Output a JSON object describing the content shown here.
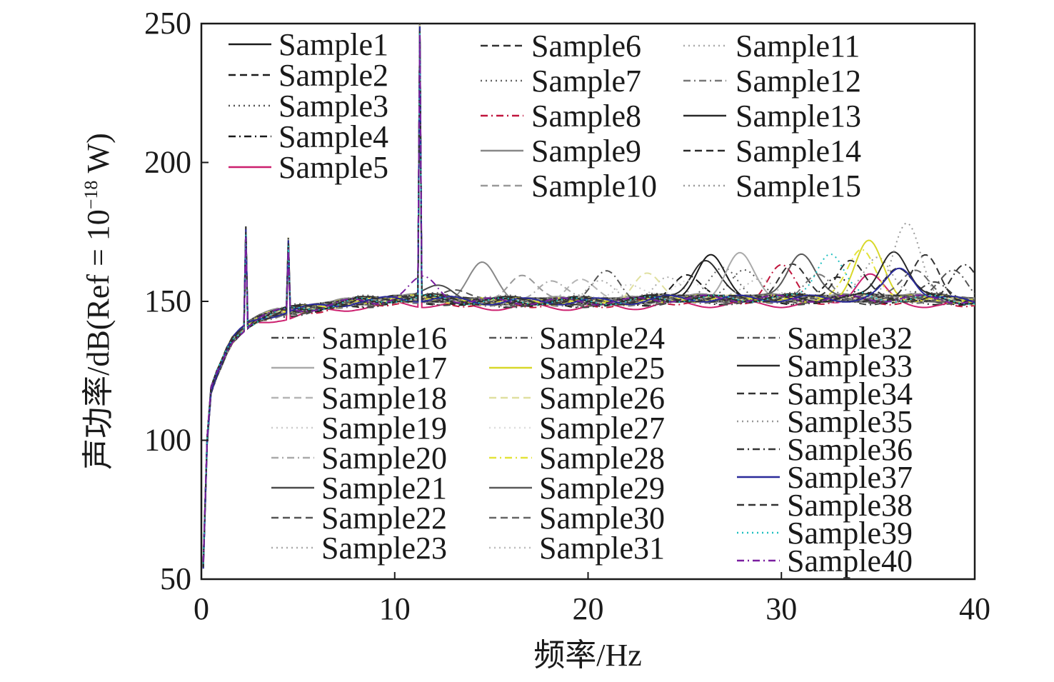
{
  "chart_data": {
    "type": "line",
    "xlabel": "频率/Hz",
    "ylabel": "声功率/dB(Ref = 10",
    "ylabel_exp": "−18",
    "ylabel_unit": " W)",
    "xlim": [
      0,
      40
    ],
    "ylim": [
      50,
      250
    ],
    "xticks": [
      0,
      10,
      20,
      30,
      40
    ],
    "yticks": [
      50,
      100,
      150,
      200,
      250
    ],
    "xtick_labels": [
      "0",
      "10",
      "20",
      "30",
      "40"
    ],
    "ytick_labels": [
      "50",
      "100",
      "150",
      "200",
      "250"
    ],
    "grid": false,
    "legend_placement": "inside, upper half and lower middle",
    "common_shape": {
      "x": [
        0.1,
        0.3,
        0.5,
        0.8,
        1.0,
        1.3,
        1.6,
        2.0,
        2.5,
        3.0,
        3.5,
        4.0,
        5.0,
        6.0,
        7.0,
        8.0,
        9.0,
        10.0,
        11.0,
        12.0,
        14.0,
        16.0,
        18.0,
        20.0,
        22.0,
        24.0,
        26.0,
        28.0,
        30.0,
        32.0,
        34.0,
        36.0,
        38.0,
        40.0
      ],
      "y": [
        55,
        100,
        118,
        124,
        127,
        132,
        136,
        139,
        142,
        144,
        145,
        146,
        147,
        148,
        149,
        150,
        150,
        151,
        151,
        151,
        150,
        150,
        150,
        150,
        150,
        151,
        151,
        151,
        151,
        151,
        151,
        151,
        151,
        150
      ]
    },
    "spikes": [
      {
        "x": 2.3,
        "y": 177
      },
      {
        "x": 4.5,
        "y": 173
      },
      {
        "x": 11.3,
        "y": 250
      }
    ],
    "series": [
      {
        "name": "Sample1",
        "color": "#1a1a1a",
        "dash": "solid",
        "peak_x": 26.3,
        "peak_y": 166,
        "offset": 0.5
      },
      {
        "name": "Sample2",
        "color": "#1a1a1a",
        "dash": "dashed",
        "peak_x": 25.0,
        "peak_y": 160,
        "offset": -0.5
      },
      {
        "name": "Sample3",
        "color": "#555555",
        "dash": "dotted",
        "peak_x": 28.0,
        "peak_y": 162,
        "offset": 0
      },
      {
        "name": "Sample4",
        "color": "#1a1a1a",
        "dash": "dashdot",
        "peak_x": 33.0,
        "peak_y": 158,
        "offset": -1
      },
      {
        "name": "Sample5",
        "color": "#cc1f6e",
        "dash": "solid",
        "peak_x": 34.5,
        "peak_y": 160,
        "offset": -2
      },
      {
        "name": "Sample6",
        "color": "#333333",
        "dash": "dashed",
        "peak_x": 30.5,
        "peak_y": 163,
        "offset": 0
      },
      {
        "name": "Sample7",
        "color": "#666666",
        "dash": "dotted",
        "peak_x": 27.0,
        "peak_y": 161,
        "offset": 1
      },
      {
        "name": "Sample8",
        "color": "#c0143c",
        "dash": "dashdot",
        "peak_x": 30.0,
        "peak_y": 162,
        "offset": -1
      },
      {
        "name": "Sample9",
        "color": "#888888",
        "dash": "solid",
        "peak_x": 14.5,
        "peak_y": 163,
        "offset": 0.5
      },
      {
        "name": "Sample10",
        "color": "#999999",
        "dash": "dashed",
        "peak_x": 16.5,
        "peak_y": 160,
        "offset": 0
      },
      {
        "name": "Sample11",
        "color": "#aaaaaa",
        "dash": "dotted",
        "peak_x": 24.0,
        "peak_y": 158,
        "offset": 0
      },
      {
        "name": "Sample12",
        "color": "#777777",
        "dash": "dashdot",
        "peak_x": 32.0,
        "peak_y": 159,
        "offset": -0.5
      },
      {
        "name": "Sample13",
        "color": "#2a2a2a",
        "dash": "solid",
        "peak_x": 26.0,
        "peak_y": 165,
        "offset": 0.5
      },
      {
        "name": "Sample14",
        "color": "#2a2a2a",
        "dash": "dashed",
        "peak_x": 36.0,
        "peak_y": 163,
        "offset": 0
      },
      {
        "name": "Sample15",
        "color": "#999999",
        "dash": "dotted",
        "peak_x": 35.0,
        "peak_y": 167,
        "offset": 0.5
      },
      {
        "name": "Sample16",
        "color": "#444444",
        "dash": "dashdot",
        "peak_x": 38.0,
        "peak_y": 158,
        "offset": -1
      },
      {
        "name": "Sample17",
        "color": "#aaaaaa",
        "dash": "solid",
        "peak_x": 27.8,
        "peak_y": 167,
        "offset": 0
      },
      {
        "name": "Sample18",
        "color": "#b5b5b5",
        "dash": "dashed",
        "peak_x": 19.5,
        "peak_y": 158,
        "offset": 0
      },
      {
        "name": "Sample19",
        "color": "#cccccc",
        "dash": "dotted",
        "peak_x": 22.0,
        "peak_y": 157,
        "offset": 0
      },
      {
        "name": "Sample20",
        "color": "#aaaaaa",
        "dash": "dashdot",
        "peak_x": 18.0,
        "peak_y": 158,
        "offset": 0
      },
      {
        "name": "Sample21",
        "color": "#4a4a4a",
        "dash": "solid",
        "peak_x": 12.5,
        "peak_y": 156,
        "offset": 0
      },
      {
        "name": "Sample22",
        "color": "#555555",
        "dash": "dashed",
        "peak_x": 13.0,
        "peak_y": 155,
        "offset": -0.5
      },
      {
        "name": "Sample23",
        "color": "#aaaaaa",
        "dash": "dotted",
        "peak_x": 20.5,
        "peak_y": 157,
        "offset": 0
      },
      {
        "name": "Sample24",
        "color": "#555555",
        "dash": "dashdot",
        "peak_x": 21.0,
        "peak_y": 160,
        "offset": 0
      },
      {
        "name": "Sample25",
        "color": "#d8d82a",
        "dash": "solid",
        "peak_x": 34.5,
        "peak_y": 171,
        "offset": 0
      },
      {
        "name": "Sample26",
        "color": "#e0e0a0",
        "dash": "dashed",
        "peak_x": 23.0,
        "peak_y": 159,
        "offset": 0
      },
      {
        "name": "Sample27",
        "color": "#dddddd",
        "dash": "dotted",
        "peak_x": 25.0,
        "peak_y": 158,
        "offset": 0
      },
      {
        "name": "Sample28",
        "color": "#e3e33a",
        "dash": "dashdot",
        "peak_x": 34.2,
        "peak_y": 169,
        "offset": 0
      },
      {
        "name": "Sample29",
        "color": "#5a5a5a",
        "dash": "solid",
        "peak_x": 31.0,
        "peak_y": 168,
        "offset": 0
      },
      {
        "name": "Sample30",
        "color": "#666666",
        "dash": "dashed",
        "peak_x": 37.0,
        "peak_y": 162,
        "offset": 0
      },
      {
        "name": "Sample31",
        "color": "#bbbbbb",
        "dash": "dotted",
        "peak_x": 29.0,
        "peak_y": 159,
        "offset": 0
      },
      {
        "name": "Sample32",
        "color": "#555555",
        "dash": "dashdot",
        "peak_x": 39.0,
        "peak_y": 161,
        "offset": 0
      },
      {
        "name": "Sample33",
        "color": "#2a2a2a",
        "dash": "solid",
        "peak_x": 35.8,
        "peak_y": 169,
        "offset": 0
      },
      {
        "name": "Sample34",
        "color": "#333333",
        "dash": "dashed",
        "peak_x": 37.5,
        "peak_y": 166,
        "offset": 0
      },
      {
        "name": "Sample35",
        "color": "#999999",
        "dash": "dotted",
        "peak_x": 36.5,
        "peak_y": 177,
        "offset": 0
      },
      {
        "name": "Sample36",
        "color": "#333333",
        "dash": "dashdot",
        "peak_x": 39.5,
        "peak_y": 162,
        "offset": 0
      },
      {
        "name": "Sample37",
        "color": "#2a2a9a",
        "dash": "solid",
        "peak_x": 36.2,
        "peak_y": 162,
        "offset": 0
      },
      {
        "name": "Sample38",
        "color": "#333333",
        "dash": "dashed",
        "peak_x": 33.5,
        "peak_y": 165,
        "offset": 0
      },
      {
        "name": "Sample39",
        "color": "#1fc0c0",
        "dash": "dotted",
        "peak_x": 32.5,
        "peak_y": 168,
        "offset": 0
      },
      {
        "name": "Sample40",
        "color": "#7a1fa0",
        "dash": "dashdot",
        "peak_x": 11.5,
        "peak_y": 158,
        "offset": 0
      }
    ]
  }
}
